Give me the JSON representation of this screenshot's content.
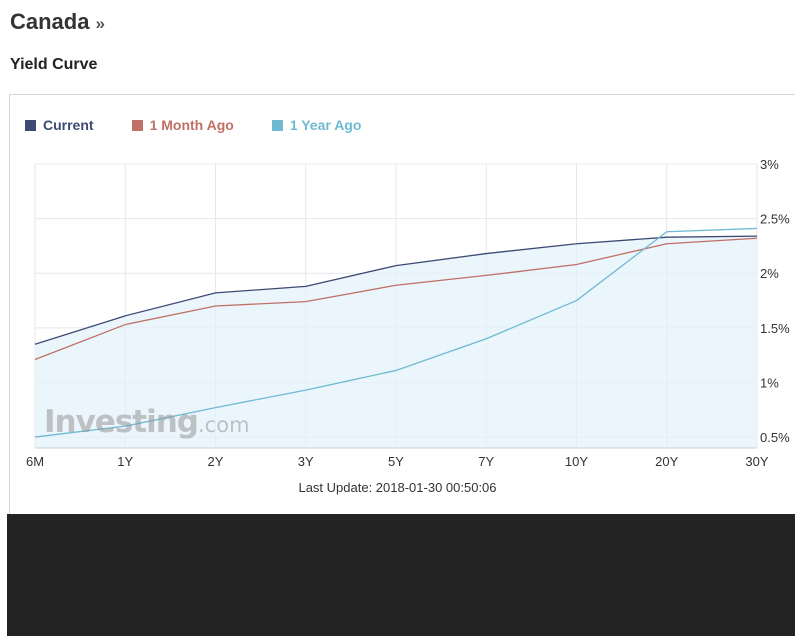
{
  "header": {
    "country": "Canada",
    "chevron": "»",
    "section_title": "Yield Curve"
  },
  "footer": {
    "last_update": "Last Update: 2018-01-30 00:50:06",
    "watermark_main": "Investing",
    "watermark_suffix": ".com"
  },
  "chart_data": {
    "type": "line",
    "categories": [
      "6M",
      "1Y",
      "2Y",
      "3Y",
      "5Y",
      "7Y",
      "10Y",
      "20Y",
      "30Y"
    ],
    "y_ticks": [
      "3%",
      "2.5%",
      "2%",
      "1.5%",
      "1%",
      "0.5%"
    ],
    "y_tick_values": [
      3,
      2.5,
      2,
      1.5,
      1,
      0.5
    ],
    "ylim": [
      0.4,
      3.0
    ],
    "y_unit": "%",
    "grid": true,
    "legend_position": "top-left",
    "series": [
      {
        "name": "Current",
        "color": "#3d4a73",
        "fill": true,
        "values": [
          1.35,
          1.61,
          1.82,
          1.88,
          2.07,
          2.18,
          2.27,
          2.33,
          2.34
        ]
      },
      {
        "name": "1 Month Ago",
        "color": "#c07065",
        "fill": false,
        "values": [
          1.21,
          1.53,
          1.7,
          1.74,
          1.89,
          1.98,
          2.08,
          2.27,
          2.32
        ]
      },
      {
        "name": "1 Year Ago",
        "color": "#6fbad0",
        "fill": false,
        "values": [
          0.5,
          0.6,
          0.77,
          0.93,
          1.11,
          1.4,
          1.75,
          2.38,
          2.41
        ]
      }
    ]
  }
}
